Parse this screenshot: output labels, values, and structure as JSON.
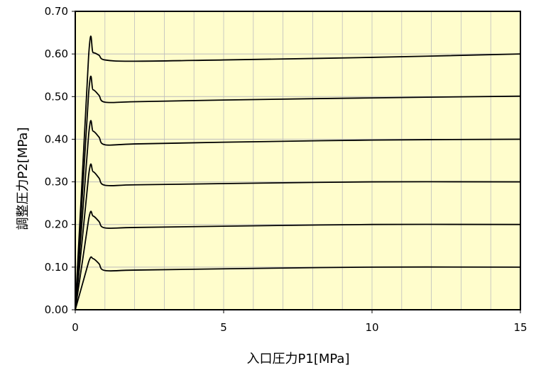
{
  "chart_data": {
    "type": "line",
    "title": "",
    "xlabel": "入口圧力P1[MPa]",
    "ylabel": "調整圧力P2[MPa]",
    "xlim": [
      0,
      15
    ],
    "ylim": [
      0,
      0.7
    ],
    "x_ticks": [
      0,
      5,
      10,
      15
    ],
    "x_tick_labels": [
      "0",
      "5",
      "10",
      "15"
    ],
    "y_ticks": [
      0,
      0.1,
      0.2,
      0.3,
      0.4,
      0.5,
      0.6,
      0.7
    ],
    "y_tick_labels": [
      "0.00",
      "0.10",
      "0.20",
      "0.30",
      "0.40",
      "0.50",
      "0.60",
      "0.70"
    ],
    "grid": true,
    "minor_x_gridlines": true,
    "legend": "none",
    "colors": {
      "plot_background": "#fffdcc",
      "grid": "#bdbdbd",
      "line": "#000000",
      "frame": "#000000"
    },
    "series": [
      {
        "x": [
          0,
          0.45,
          0.6,
          0.8,
          1.0,
          2,
          5,
          10,
          15
        ],
        "y": [
          0,
          0.112,
          0.12,
          0.108,
          0.092,
          0.093,
          0.096,
          0.1,
          0.1
        ]
      },
      {
        "x": [
          0,
          0.45,
          0.6,
          0.8,
          1.0,
          2,
          5,
          10,
          15
        ],
        "y": [
          0,
          0.212,
          0.22,
          0.207,
          0.192,
          0.193,
          0.196,
          0.2,
          0.2
        ]
      },
      {
        "x": [
          0,
          0.45,
          0.6,
          0.8,
          1.0,
          2,
          5,
          10,
          15
        ],
        "y": [
          0,
          0.315,
          0.324,
          0.309,
          0.292,
          0.293,
          0.296,
          0.3,
          0.3
        ]
      },
      {
        "x": [
          0,
          0.45,
          0.6,
          0.8,
          1.0,
          2,
          5,
          10,
          15
        ],
        "y": [
          0,
          0.41,
          0.419,
          0.405,
          0.387,
          0.389,
          0.393,
          0.398,
          0.4
        ]
      },
      {
        "x": [
          0,
          0.45,
          0.6,
          0.8,
          1.0,
          2,
          5,
          10,
          15
        ],
        "y": [
          0,
          0.507,
          0.516,
          0.503,
          0.487,
          0.488,
          0.492,
          0.497,
          0.501
        ]
      },
      {
        "x": [
          0,
          0.45,
          0.6,
          0.8,
          1.0,
          2,
          5,
          10,
          15
        ],
        "y": [
          0,
          0.595,
          0.603,
          0.597,
          0.586,
          0.583,
          0.586,
          0.592,
          0.6
        ]
      }
    ]
  }
}
